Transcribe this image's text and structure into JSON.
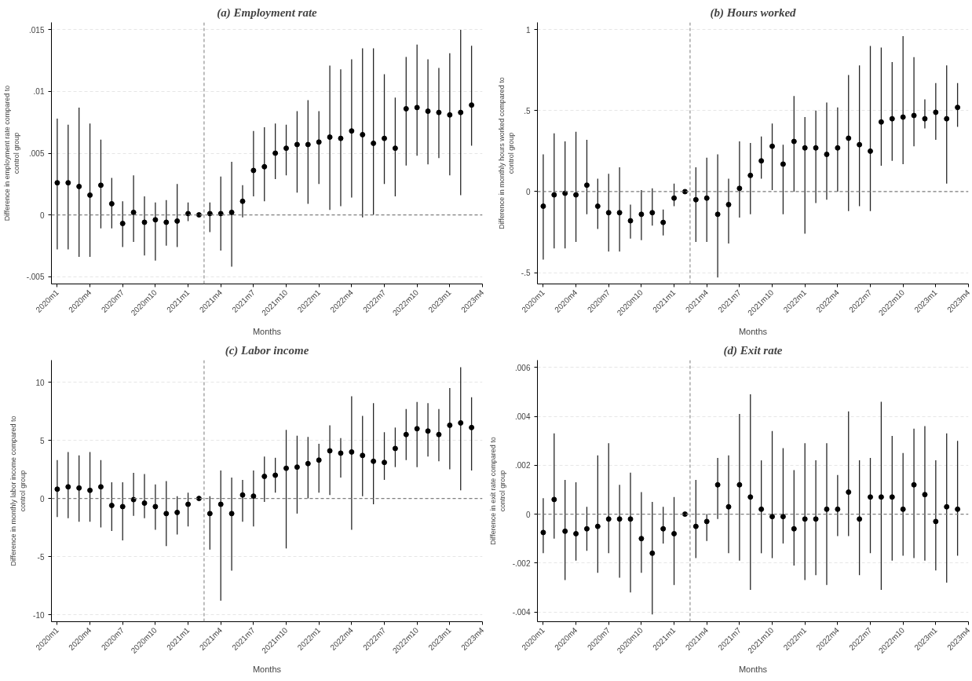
{
  "chart_data": [
    {
      "type": "scatter",
      "title": "(a) Employment rate",
      "xlabel": "Months",
      "ylabel": "Difference in employment rate compared to\ncontrol group",
      "marker": "circle",
      "grid": "y",
      "color": "#000000",
      "x": [
        "2020-01",
        "2020-02",
        "2020-03",
        "2020-04",
        "2020-05",
        "2020-06",
        "2020-07",
        "2020-08",
        "2020-09",
        "2020-10",
        "2020-11",
        "2020-12",
        "2021-01",
        "2021-02",
        "2021-03",
        "2021-04",
        "2021-05",
        "2021-06",
        "2021-07",
        "2021-08",
        "2021-09",
        "2021-10",
        "2021-11",
        "2021-12",
        "2022-01",
        "2022-02",
        "2022-03",
        "2022-04",
        "2022-05",
        "2022-06",
        "2022-07",
        "2022-08",
        "2022-09",
        "2022-10",
        "2022-11",
        "2022-12",
        "2023-01",
        "2023-02",
        "2023-03"
      ],
      "values": [
        0.0026,
        0.0026,
        0.0023,
        0.0016,
        0.0024,
        0.0009,
        -0.0007,
        0.0002,
        -0.0006,
        -0.0004,
        -0.0006,
        -0.0005,
        0.0001,
        0,
        0.0001,
        0.0001,
        0.0002,
        0.0011,
        0.0036,
        0.0039,
        0.005,
        0.0054,
        0.0057,
        0.0057,
        0.0059,
        0.0063,
        0.0062,
        0.0068,
        0.0065,
        0.0058,
        0.0062,
        0.0054,
        0.0086,
        0.0087,
        0.0084,
        0.0083,
        0.0081,
        0.0083,
        0.0089
      ],
      "errors": [
        [
          -0.0028,
          0.0078
        ],
        [
          -0.0028,
          0.0073
        ],
        [
          -0.0034,
          0.0087
        ],
        [
          -0.0034,
          0.0074
        ],
        [
          -0.0011,
          0.0061
        ],
        [
          -0.0011,
          0.003
        ],
        [
          -0.0026,
          0.0011
        ],
        [
          -0.0022,
          0.0032
        ],
        [
          -0.0033,
          0.0015
        ],
        [
          -0.0037,
          0.001
        ],
        [
          -0.0025,
          0.0012
        ],
        [
          -0.0026,
          0.0025
        ],
        [
          -0.0005,
          0.001
        ],
        null,
        [
          -0.0014,
          0.001
        ],
        [
          -0.0029,
          0.0031
        ],
        [
          -0.0042,
          0.0043
        ],
        [
          -0.0002,
          0.0024
        ],
        [
          0.0015,
          0.0068
        ],
        [
          0.0011,
          0.0071
        ],
        [
          0.0029,
          0.0074
        ],
        [
          0.0032,
          0.0073
        ],
        [
          0.0018,
          0.0084
        ],
        [
          0.0009,
          0.0093
        ],
        [
          0.0025,
          0.0084
        ],
        [
          0.0004,
          0.0121
        ],
        [
          0.0007,
          0.0118
        ],
        [
          0.0014,
          0.0126
        ],
        [
          -0.0002,
          0.0135
        ],
        [
          0,
          0.0135
        ],
        [
          0.0025,
          0.0114
        ],
        [
          0.0015,
          0.0095
        ],
        [
          0.004,
          0.0128
        ],
        [
          0.0048,
          0.0138
        ],
        [
          0.0041,
          0.0126
        ],
        [
          0.0046,
          0.0119
        ],
        [
          0.0032,
          0.0131
        ],
        [
          0.0016,
          0.015
        ],
        [
          0.0056,
          0.0137
        ]
      ],
      "xlim": [
        "2019-12-15",
        "2023-04"
      ],
      "xticks": [
        {
          "value": "2020-01",
          "label": "2020m1"
        },
        {
          "value": "2020-04",
          "label": "2020m4"
        },
        {
          "value": "2020-07",
          "label": "2020m7"
        },
        {
          "value": "2020-10",
          "label": "2020m10"
        },
        {
          "value": "2021-01",
          "label": "2021m1"
        },
        {
          "value": "2021-04",
          "label": "2021m4"
        },
        {
          "value": "2021-07",
          "label": "2021m7"
        },
        {
          "value": "2021-10",
          "label": "2021m10"
        },
        {
          "value": "2022-01",
          "label": "2022m1"
        },
        {
          "value": "2022-04",
          "label": "2022m4"
        },
        {
          "value": "2022-07",
          "label": "2022m7"
        },
        {
          "value": "2022-10",
          "label": "2022m10"
        },
        {
          "value": "2023-01",
          "label": "2023m1"
        },
        {
          "value": "2023-04",
          "label": "2023m4"
        }
      ],
      "ylim": [
        -0.0056,
        0.0156
      ],
      "yticks": [
        {
          "value": -0.005,
          "label": "-.005"
        },
        0,
        {
          "value": 0.005,
          "label": ".005"
        },
        {
          "value": 0.01,
          "label": ".01"
        },
        {
          "value": 0.015,
          "label": ".015"
        }
      ],
      "ref_lines": [
        {
          "axis": "x",
          "value": "2021-02-15",
          "color": "#909090",
          "line_style": "dashed"
        },
        {
          "axis": "y",
          "value": 0,
          "color": "#808080",
          "line_style": "dashed"
        }
      ]
    },
    {
      "type": "scatter",
      "title": "(b) Hours worked",
      "xlabel": "Months",
      "ylabel": "Difference in monthly hours worked compared to\ncontrol group",
      "marker": "circle",
      "grid": "y",
      "color": "#000000",
      "x": [
        "2020-01",
        "2020-02",
        "2020-03",
        "2020-04",
        "2020-05",
        "2020-06",
        "2020-07",
        "2020-08",
        "2020-09",
        "2020-10",
        "2020-11",
        "2020-12",
        "2021-01",
        "2021-02",
        "2021-03",
        "2021-04",
        "2021-05",
        "2021-06",
        "2021-07",
        "2021-08",
        "2021-09",
        "2021-10",
        "2021-11",
        "2021-12",
        "2022-01",
        "2022-02",
        "2022-03",
        "2022-04",
        "2022-05",
        "2022-06",
        "2022-07",
        "2022-08",
        "2022-09",
        "2022-10",
        "2022-11",
        "2022-12",
        "2023-01",
        "2023-02",
        "2023-03"
      ],
      "values": [
        -0.09,
        -0.02,
        -0.01,
        -0.02,
        0.04,
        -0.09,
        -0.13,
        -0.13,
        -0.18,
        -0.14,
        -0.13,
        -0.19,
        -0.04,
        0,
        -0.05,
        -0.04,
        -0.14,
        -0.08,
        0.02,
        0.1,
        0.19,
        0.28,
        0.17,
        0.31,
        0.27,
        0.27,
        0.23,
        0.27,
        0.33,
        0.29,
        0.25,
        0.43,
        0.45,
        0.46,
        0.47,
        0.45,
        0.49,
        0.45,
        0.52
      ],
      "errors": [
        [
          -0.42,
          0.23
        ],
        [
          -0.35,
          0.36
        ],
        [
          -0.35,
          0.31
        ],
        [
          -0.31,
          0.37
        ],
        [
          -0.14,
          0.32
        ],
        [
          -0.23,
          0.08
        ],
        [
          -0.37,
          0.11
        ],
        [
          -0.37,
          0.15
        ],
        [
          -0.29,
          -0.08
        ],
        [
          -0.3,
          0.01
        ],
        [
          -0.21,
          0.02
        ],
        [
          -0.27,
          -0.11
        ],
        [
          -0.09,
          0.05
        ],
        null,
        [
          -0.31,
          0.15
        ],
        [
          -0.31,
          0.21
        ],
        [
          -0.53,
          0.23
        ],
        [
          -0.32,
          0.08
        ],
        [
          -0.16,
          0.31
        ],
        [
          -0.14,
          0.3
        ],
        [
          0.08,
          0.34
        ],
        [
          0.01,
          0.42
        ],
        [
          -0.14,
          0.29
        ],
        [
          0,
          0.59
        ],
        [
          -0.26,
          0.46
        ],
        [
          -0.07,
          0.5
        ],
        [
          -0.05,
          0.55
        ],
        [
          0,
          0.52
        ],
        [
          -0.12,
          0.72
        ],
        [
          -0.09,
          0.78
        ],
        [
          -0.12,
          0.9
        ],
        [
          0.16,
          0.89
        ],
        [
          0.19,
          0.8
        ],
        [
          0.17,
          0.96
        ],
        [
          0.28,
          0.83
        ],
        [
          0.39,
          0.57
        ],
        [
          0.32,
          0.67
        ],
        [
          0.05,
          0.78
        ],
        [
          0.4,
          0.67
        ]
      ],
      "xlim": [
        "2019-12-15",
        "2023-04"
      ],
      "xticks": [
        {
          "value": "2020-01",
          "label": "2020m1"
        },
        {
          "value": "2020-04",
          "label": "2020m4"
        },
        {
          "value": "2020-07",
          "label": "2020m7"
        },
        {
          "value": "2020-10",
          "label": "2020m10"
        },
        {
          "value": "2021-01",
          "label": "2021m1"
        },
        {
          "value": "2021-04",
          "label": "2021m4"
        },
        {
          "value": "2021-07",
          "label": "2021m7"
        },
        {
          "value": "2021-10",
          "label": "2021m10"
        },
        {
          "value": "2022-01",
          "label": "2022m1"
        },
        {
          "value": "2022-04",
          "label": "2022m4"
        },
        {
          "value": "2022-07",
          "label": "2022m7"
        },
        {
          "value": "2022-10",
          "label": "2022m10"
        },
        {
          "value": "2023-01",
          "label": "2023m1"
        },
        {
          "value": "2023-04",
          "label": "2023m4"
        }
      ],
      "ylim": [
        -0.57,
        1.045
      ],
      "yticks": [
        {
          "value": -0.5,
          "label": "-.5"
        },
        0,
        {
          "value": 0.5,
          "label": ".5"
        },
        1
      ],
      "ref_lines": [
        {
          "axis": "x",
          "value": "2021-02-15",
          "color": "#909090",
          "line_style": "dashed"
        },
        {
          "axis": "y",
          "value": 0,
          "color": "#808080",
          "line_style": "dashed"
        }
      ]
    },
    {
      "type": "scatter",
      "title": "(c) Labor income",
      "xlabel": "Months",
      "ylabel": "Difference in monthly labor income compared to\ncontrol group",
      "marker": "circle",
      "grid": "y",
      "color": "#000000",
      "x": [
        "2020-01",
        "2020-02",
        "2020-03",
        "2020-04",
        "2020-05",
        "2020-06",
        "2020-07",
        "2020-08",
        "2020-09",
        "2020-10",
        "2020-11",
        "2020-12",
        "2021-01",
        "2021-02",
        "2021-03",
        "2021-04",
        "2021-05",
        "2021-06",
        "2021-07",
        "2021-08",
        "2021-09",
        "2021-10",
        "2021-11",
        "2021-12",
        "2022-01",
        "2022-02",
        "2022-03",
        "2022-04",
        "2022-05",
        "2022-06",
        "2022-07",
        "2022-08",
        "2022-09",
        "2022-10",
        "2022-11",
        "2022-12",
        "2023-01",
        "2023-02",
        "2023-03"
      ],
      "values": [
        0.8,
        1.0,
        0.9,
        0.7,
        1.0,
        -0.6,
        -0.7,
        -0.1,
        -0.4,
        -0.7,
        -1.3,
        -1.2,
        -0.5,
        0,
        -1.3,
        -0.5,
        -1.3,
        0.3,
        0.2,
        1.9,
        2.0,
        2.6,
        2.7,
        3.0,
        3.3,
        4.1,
        3.9,
        4.0,
        3.7,
        3.2,
        3.1,
        4.3,
        5.5,
        6.0,
        5.8,
        5.5,
        6.3,
        6.5,
        6.1
      ],
      "errors": [
        [
          -1.6,
          3.3
        ],
        [
          -1.7,
          4.0
        ],
        [
          -2.0,
          3.7
        ],
        [
          -2.0,
          4.0
        ],
        [
          -2.5,
          3.3
        ],
        [
          -2.8,
          1.4
        ],
        [
          -3.6,
          1.4
        ],
        [
          -1.5,
          2.2
        ],
        [
          -1.7,
          2.1
        ],
        [
          -2.7,
          1.2
        ],
        [
          -4.1,
          1.5
        ],
        [
          -3.1,
          0.2
        ],
        [
          -2.4,
          0.5
        ],
        null,
        [
          -4.4,
          0.2
        ],
        [
          -8.8,
          2.4
        ],
        [
          -6.2,
          1.8
        ],
        [
          -2.0,
          1.6
        ],
        [
          -2.4,
          2.4
        ],
        [
          -0.3,
          3.6
        ],
        [
          0.5,
          3.5
        ],
        [
          -4.3,
          5.9
        ],
        [
          -1.3,
          5.4
        ],
        [
          0,
          5.3
        ],
        [
          0.5,
          4.7
        ],
        [
          0.3,
          6.3
        ],
        [
          1.8,
          5.2
        ],
        [
          -2.7,
          8.8
        ],
        [
          0.2,
          7.1
        ],
        [
          -0.5,
          8.2
        ],
        [
          1.6,
          5.7
        ],
        [
          2.7,
          6.1
        ],
        [
          3.3,
          7.7
        ],
        [
          2.7,
          8.3
        ],
        [
          3.6,
          8.2
        ],
        [
          3.2,
          7.7
        ],
        [
          2.5,
          9.5
        ],
        [
          0.7,
          11.3
        ],
        [
          2.4,
          8.7
        ]
      ],
      "xlim": [
        "2019-12-15",
        "2023-04"
      ],
      "xticks": [
        {
          "value": "2020-01",
          "label": "2020m1"
        },
        {
          "value": "2020-04",
          "label": "2020m4"
        },
        {
          "value": "2020-07",
          "label": "2020m7"
        },
        {
          "value": "2020-10",
          "label": "2020m10"
        },
        {
          "value": "2021-01",
          "label": "2021m1"
        },
        {
          "value": "2021-04",
          "label": "2021m4"
        },
        {
          "value": "2021-07",
          "label": "2021m7"
        },
        {
          "value": "2021-10",
          "label": "2021m10"
        },
        {
          "value": "2022-01",
          "label": "2022m1"
        },
        {
          "value": "2022-04",
          "label": "2022m4"
        },
        {
          "value": "2022-07",
          "label": "2022m7"
        },
        {
          "value": "2022-10",
          "label": "2022m10"
        },
        {
          "value": "2023-01",
          "label": "2023m1"
        },
        {
          "value": "2023-04",
          "label": "2023m4"
        }
      ],
      "ylim": [
        -10.6,
        11.9
      ],
      "yticks": [
        -10,
        -5,
        0,
        5,
        10
      ],
      "ref_lines": [
        {
          "axis": "x",
          "value": "2021-02-15",
          "color": "#909090",
          "line_style": "dashed"
        },
        {
          "axis": "y",
          "value": 0,
          "color": "#808080",
          "line_style": "dashed"
        }
      ]
    },
    {
      "type": "scatter",
      "title": "(d) Exit rate",
      "xlabel": "Months",
      "ylabel": "Difference in exit rate compared to\ncontrol group",
      "marker": "circle",
      "grid": "y",
      "color": "#000000",
      "x": [
        "2020-01",
        "2020-02",
        "2020-03",
        "2020-04",
        "2020-05",
        "2020-06",
        "2020-07",
        "2020-08",
        "2020-09",
        "2020-10",
        "2020-11",
        "2020-12",
        "2021-01",
        "2021-02",
        "2021-03",
        "2021-04",
        "2021-05",
        "2021-06",
        "2021-07",
        "2021-08",
        "2021-09",
        "2021-10",
        "2021-11",
        "2021-12",
        "2022-01",
        "2022-02",
        "2022-03",
        "2022-04",
        "2022-05",
        "2022-06",
        "2022-07",
        "2022-08",
        "2022-09",
        "2022-10",
        "2022-11",
        "2022-12",
        "2023-01",
        "2023-02",
        "2023-03"
      ],
      "values": [
        -0.00075,
        0.0006,
        -0.0007,
        -0.0008,
        -0.0006,
        -0.0005,
        -0.0002,
        -0.0002,
        -0.0002,
        -0.001,
        -0.0016,
        -0.0006,
        -0.0008,
        0,
        -0.0005,
        -0.0003,
        0.0012,
        0.0003,
        0.0012,
        0.0007,
        0.0002,
        -0.0001,
        -0.0001,
        -0.0006,
        -0.0002,
        -0.0002,
        0.0002,
        0.0002,
        0.0009,
        -0.0002,
        0.0007,
        0.0007,
        0.0007,
        0.0002,
        0.0012,
        0.0008,
        -0.0003,
        0.0003,
        0.0002
      ],
      "errors": [
        [
          -0.0016,
          0.00065
        ],
        [
          -0.001,
          0.0033
        ],
        [
          -0.0027,
          0.0014
        ],
        [
          -0.0019,
          0.0013
        ],
        [
          -0.0015,
          0.0003
        ],
        [
          -0.0024,
          0.0024
        ],
        [
          -0.0016,
          0.0029
        ],
        [
          -0.0026,
          0.0012
        ],
        [
          -0.0032,
          0.0017
        ],
        [
          -0.0024,
          0.0009
        ],
        [
          -0.0041,
          0.0005
        ],
        [
          -0.0012,
          0.0003
        ],
        [
          -0.0029,
          0.0007
        ],
        null,
        [
          -0.0018,
          0.0014
        ],
        [
          -0.0011,
          0
        ],
        [
          -0.0002,
          0.0023
        ],
        [
          -0.0016,
          0.0024
        ],
        [
          -0.0019,
          0.0041
        ],
        [
          -0.0031,
          0.0049
        ],
        [
          -0.0016,
          0.0022
        ],
        [
          -0.0018,
          0.0034
        ],
        [
          -0.0012,
          0.0027
        ],
        [
          -0.0021,
          0.0018
        ],
        [
          -0.0027,
          0.0029
        ],
        [
          -0.0025,
          0.0022
        ],
        [
          -0.0029,
          0.0029
        ],
        [
          -0.0009,
          0.0016
        ],
        [
          -0.0009,
          0.0042
        ],
        [
          -0.0025,
          0.0022
        ],
        [
          -0.0016,
          0.0023
        ],
        [
          -0.0031,
          0.0046
        ],
        [
          -0.0019,
          0.0032
        ],
        [
          -0.0017,
          0.0025
        ],
        [
          -0.0018,
          0.0035
        ],
        [
          -0.0019,
          0.0036
        ],
        [
          -0.0023,
          0.0022
        ],
        [
          -0.0028,
          0.0033
        ],
        [
          -0.0017,
          0.003
        ]
      ],
      "xlim": [
        "2019-12-15",
        "2023-04"
      ],
      "xticks": [
        {
          "value": "2020-01",
          "label": "2020m1"
        },
        {
          "value": "2020-04",
          "label": "2020m4"
        },
        {
          "value": "2020-07",
          "label": "2020m7"
        },
        {
          "value": "2020-10",
          "label": "2020m10"
        },
        {
          "value": "2021-01",
          "label": "2021m1"
        },
        {
          "value": "2021-04",
          "label": "2021m4"
        },
        {
          "value": "2021-07",
          "label": "2021m7"
        },
        {
          "value": "2021-10",
          "label": "2021m10"
        },
        {
          "value": "2022-01",
          "label": "2022m1"
        },
        {
          "value": "2022-04",
          "label": "2022m4"
        },
        {
          "value": "2022-07",
          "label": "2022m7"
        },
        {
          "value": "2022-10",
          "label": "2022m10"
        },
        {
          "value": "2023-01",
          "label": "2023m1"
        },
        {
          "value": "2023-04",
          "label": "2023m4"
        }
      ],
      "ylim": [
        -0.0044,
        0.0063
      ],
      "yticks": [
        {
          "value": -0.004,
          "label": "-.004"
        },
        {
          "value": -0.002,
          "label": "-.002"
        },
        0,
        {
          "value": 0.002,
          "label": ".002"
        },
        {
          "value": 0.004,
          "label": ".004"
        },
        {
          "value": 0.006,
          "label": ".006"
        }
      ],
      "ref_lines": [
        {
          "axis": "x",
          "value": "2021-02-15",
          "color": "#909090",
          "line_style": "dashed"
        },
        {
          "axis": "y",
          "value": 0,
          "color": "#808080",
          "line_style": "dashed"
        }
      ]
    }
  ]
}
